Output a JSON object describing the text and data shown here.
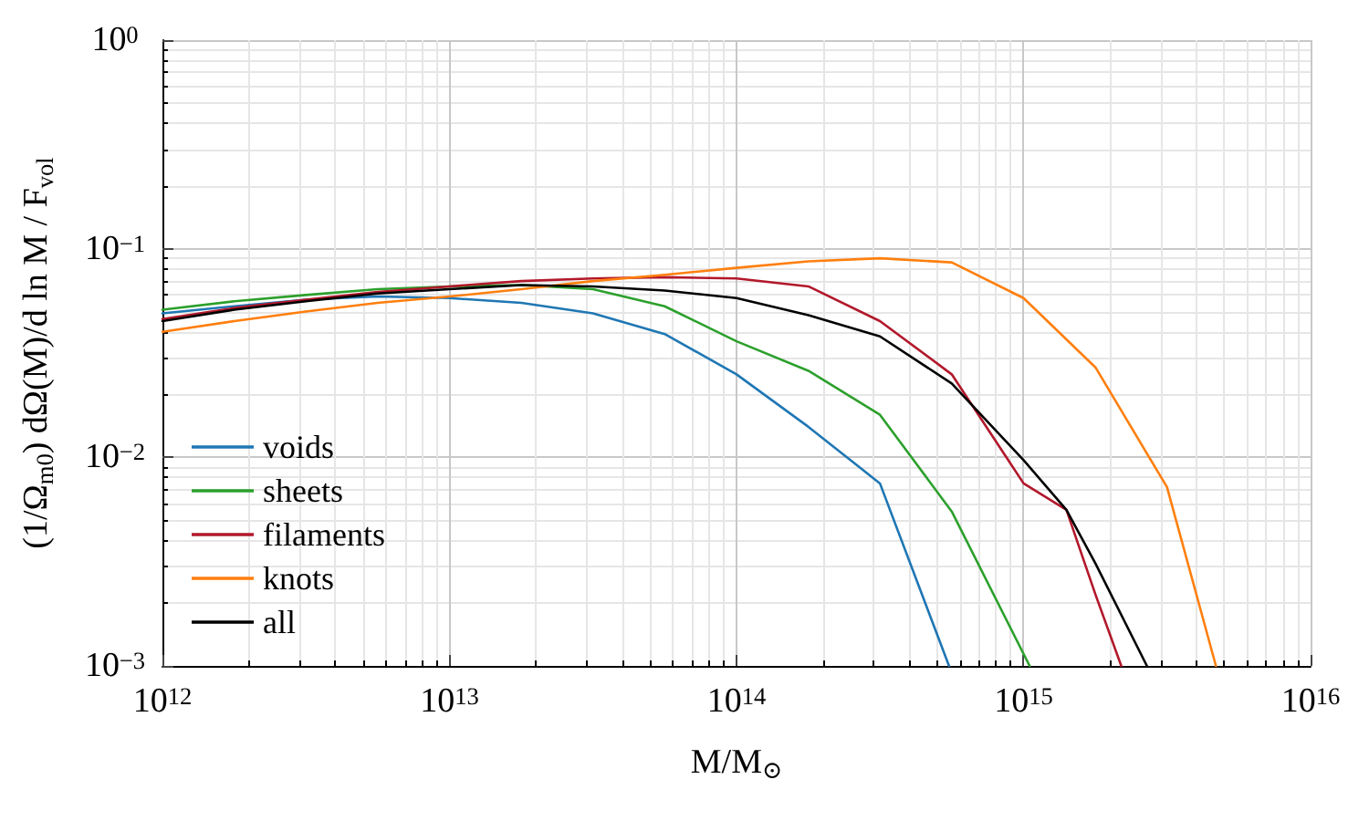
{
  "chart_data": {
    "type": "line",
    "xlabel": "M/M$_{⊙}$",
    "ylabel": "(1/Ω$_{m0}$) dΩ(M)/d ln M / F$_{vol}$",
    "log": "xy",
    "xlim": [
      1000000000000.0,
      1e+16
    ],
    "xticks": [
      {
        "value": 1000000000000.0,
        "label": "10$^{12}$"
      },
      {
        "value": 10000000000000.0,
        "label": "10$^{13}$"
      },
      {
        "value": 100000000000000.0,
        "label": "10$^{14}$"
      },
      {
        "value": 1000000000000000.0,
        "label": "10$^{15}$"
      },
      {
        "value": 1e+16,
        "label": "10$^{16}$"
      }
    ],
    "ylim": [
      0.001,
      1
    ],
    "yticks": [
      {
        "value": 0.001,
        "label": "10$^{−3}$"
      },
      {
        "value": 0.01,
        "label": "10$^{−2}$"
      },
      {
        "value": 0.1,
        "label": "10$^{−1}$"
      },
      {
        "value": 1,
        "label": "10$^{0}$"
      }
    ],
    "grid": true,
    "legend": "bottom left",
    "marker": "none",
    "line_style": "solid",
    "series": [
      {
        "name": "voids",
        "color": "#1f77b4",
        "x": [
          1000000000000.0,
          1780000000000.0,
          3160000000000.0,
          5620000000000.0,
          10000000000000.0,
          17800000000000.0,
          31600000000000.0,
          56200000000000.0,
          100000000000000.0,
          178000000000000.0,
          316000000000000.0,
          550000000000000.0
        ],
        "values": [
          0.049,
          0.053,
          0.057,
          0.059,
          0.058,
          0.055,
          0.049,
          0.039,
          0.025,
          0.014,
          0.0075,
          0.001
        ]
      },
      {
        "name": "sheets",
        "color": "#2ca02c",
        "x": [
          1000000000000.0,
          1780000000000.0,
          3160000000000.0,
          5620000000000.0,
          10000000000000.0,
          17800000000000.0,
          31600000000000.0,
          56200000000000.0,
          100000000000000.0,
          178000000000000.0,
          316000000000000.0,
          562000000000000.0,
          1050000000000000.0
        ],
        "values": [
          0.051,
          0.056,
          0.06,
          0.064,
          0.066,
          0.067,
          0.064,
          0.053,
          0.036,
          0.026,
          0.016,
          0.0055,
          0.001
        ]
      },
      {
        "name": "filaments",
        "color": "#b2182b",
        "x": [
          1000000000000.0,
          1780000000000.0,
          3160000000000.0,
          5620000000000.0,
          10000000000000.0,
          17800000000000.0,
          31600000000000.0,
          56200000000000.0,
          100000000000000.0,
          178000000000000.0,
          316000000000000.0,
          562000000000000.0,
          1000000000000000.0,
          1410000000000000.0,
          1780000000000000.0,
          2190000000000000.0
        ],
        "values": [
          0.046,
          0.052,
          0.057,
          0.062,
          0.066,
          0.07,
          0.072,
          0.073,
          0.072,
          0.066,
          0.045,
          0.025,
          0.0075,
          0.0056,
          0.0022,
          0.001
        ]
      },
      {
        "name": "knots",
        "color": "#ff7f0e",
        "x": [
          1000000000000.0,
          1780000000000.0,
          3160000000000.0,
          5620000000000.0,
          10000000000000.0,
          17800000000000.0,
          31600000000000.0,
          56200000000000.0,
          100000000000000.0,
          178000000000000.0,
          316000000000000.0,
          562000000000000.0,
          1000000000000000.0,
          1780000000000000.0,
          3160000000000000.0,
          4680000000000000.0
        ],
        "values": [
          0.04,
          0.045,
          0.05,
          0.055,
          0.059,
          0.064,
          0.07,
          0.075,
          0.081,
          0.087,
          0.09,
          0.086,
          0.058,
          0.027,
          0.0072,
          0.001
        ]
      },
      {
        "name": "all",
        "color": "#000000",
        "x": [
          1000000000000.0,
          1780000000000.0,
          3160000000000.0,
          5620000000000.0,
          10000000000000.0,
          17800000000000.0,
          31600000000000.0,
          56200000000000.0,
          100000000000000.0,
          178000000000000.0,
          316000000000000.0,
          562000000000000.0,
          1000000000000000.0,
          1410000000000000.0,
          1780000000000000.0,
          2690000000000000.0
        ],
        "values": [
          0.045,
          0.051,
          0.056,
          0.061,
          0.064,
          0.067,
          0.066,
          0.063,
          0.058,
          0.048,
          0.038,
          0.0226,
          0.0097,
          0.0056,
          0.0031,
          0.001
        ]
      }
    ]
  }
}
